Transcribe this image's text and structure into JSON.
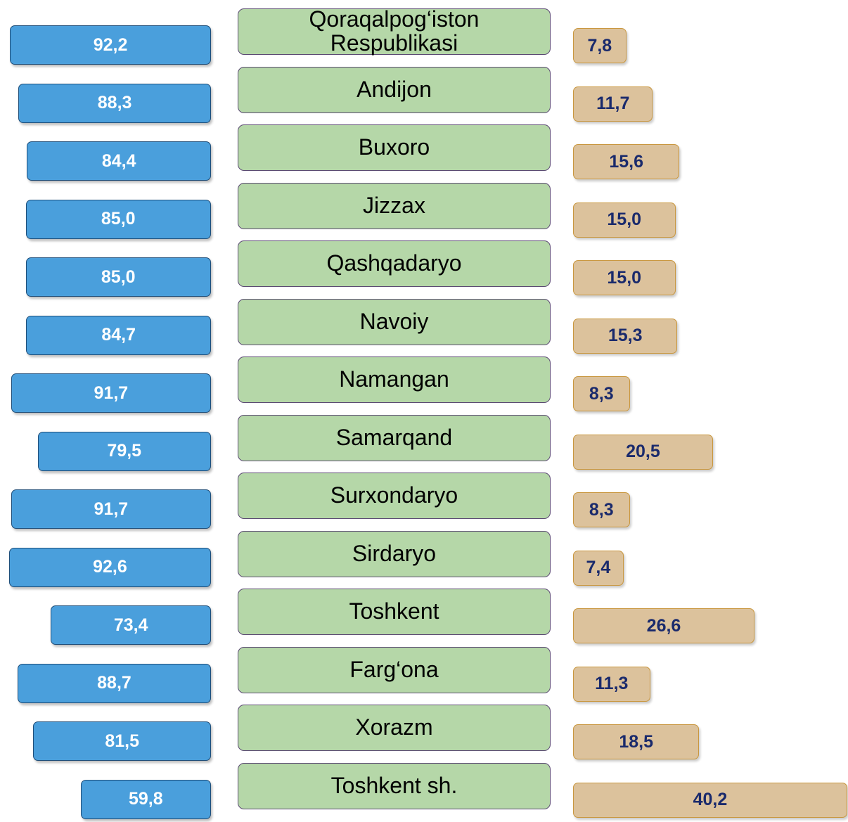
{
  "chart_data": {
    "type": "butterfly",
    "categories": [
      "Qoraqalpog‘iston Respublikasi",
      "Andijon",
      "Buxoro",
      "Jizzax",
      "Qashqadaryo",
      "Navoiy",
      "Namangan",
      "Samarqand",
      "Surxondaryo",
      "Sirdaryo",
      "Toshkent",
      "Farg‘ona",
      "Xorazm",
      "Toshkent sh."
    ],
    "series": [
      {
        "color": "#4a9fdc",
        "values": [
          92.2,
          88.3,
          84.4,
          85.0,
          85.0,
          84.7,
          91.7,
          79.5,
          91.7,
          92.6,
          73.4,
          88.7,
          81.5,
          59.8
        ],
        "value_labels": [
          "92,2",
          "88,3",
          "84,4",
          "85,0",
          "85,0",
          "84,7",
          "91,7",
          "79,5",
          "91,7",
          "92,6",
          "73,4",
          "88,7",
          "81,5",
          "59,8"
        ]
      },
      {
        "color": "#dcc29c",
        "values": [
          7.8,
          11.7,
          15.6,
          15.0,
          15.0,
          15.3,
          8.3,
          20.5,
          8.3,
          7.4,
          26.6,
          11.3,
          18.5,
          40.2
        ],
        "value_labels": [
          "7,8",
          "11,7",
          "15,6",
          "15,0",
          "15,0",
          "15,3",
          "8,3",
          "20,5",
          "8,3",
          "7,4",
          "26,6",
          "11,3",
          "18,5",
          "40,2"
        ]
      }
    ]
  }
}
